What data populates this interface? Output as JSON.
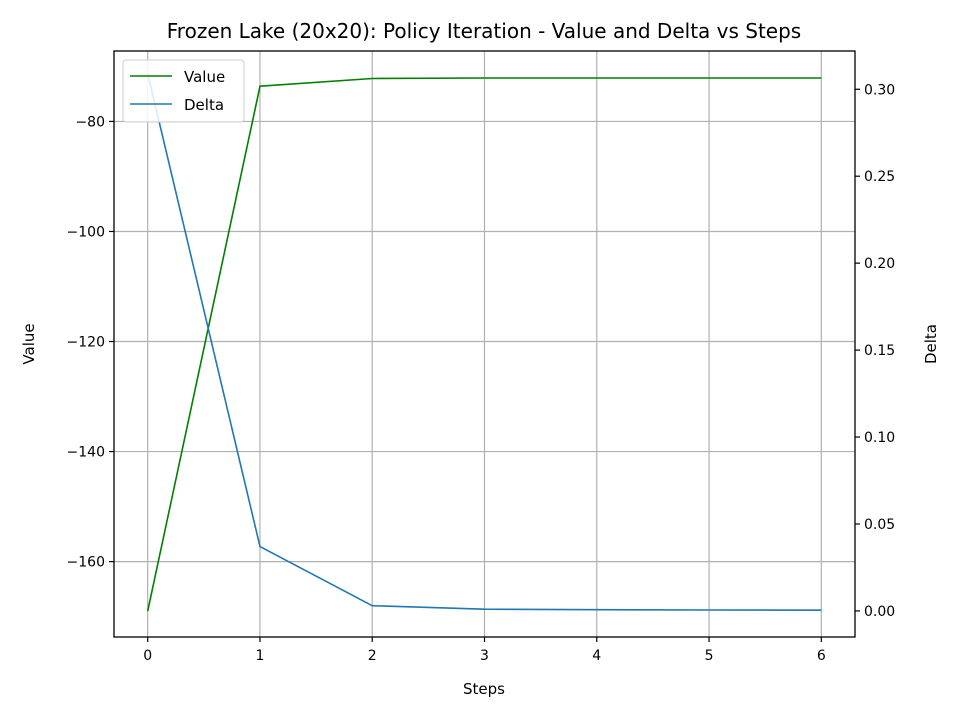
{
  "chart_data": {
    "type": "line",
    "title": "Frozen Lake (20x20): Policy Iteration - Value and Delta vs Steps",
    "xlabel": "Steps",
    "ylabel": "Value",
    "y2label": "Delta",
    "x": [
      0,
      1,
      2,
      3,
      4,
      5,
      6
    ],
    "xlim": [
      -0.3,
      6.3
    ],
    "ylim": [
      -173.7,
      -67.2
    ],
    "y2lim": [
      -0.015,
      0.322
    ],
    "xticks": [
      "0",
      "1",
      "2",
      "3",
      "4",
      "5",
      "6"
    ],
    "yticks": [
      -80,
      -100,
      -120,
      -140,
      -160
    ],
    "ytick_labels": [
      "−80",
      "−100",
      "−120",
      "−140",
      "−160"
    ],
    "y2ticks": [
      0.3,
      0.25,
      0.2,
      0.15,
      0.1,
      0.05,
      0.0
    ],
    "y2tick_labels": [
      "0.30",
      "0.25",
      "0.20",
      "0.15",
      "0.10",
      "0.05",
      "0.00"
    ],
    "grid": true,
    "legend_position": "top-left",
    "series": [
      {
        "name": "Value",
        "axis": "left",
        "color": "#008000",
        "values": [
          -169.0,
          -73.6,
          -72.2,
          -72.1,
          -72.1,
          -72.1,
          -72.1
        ]
      },
      {
        "name": "Delta",
        "axis": "right",
        "color": "#1f77b4",
        "values": [
          0.309,
          0.037,
          0.003,
          0.001,
          0.0007,
          0.0005,
          0.0004
        ]
      }
    ]
  }
}
